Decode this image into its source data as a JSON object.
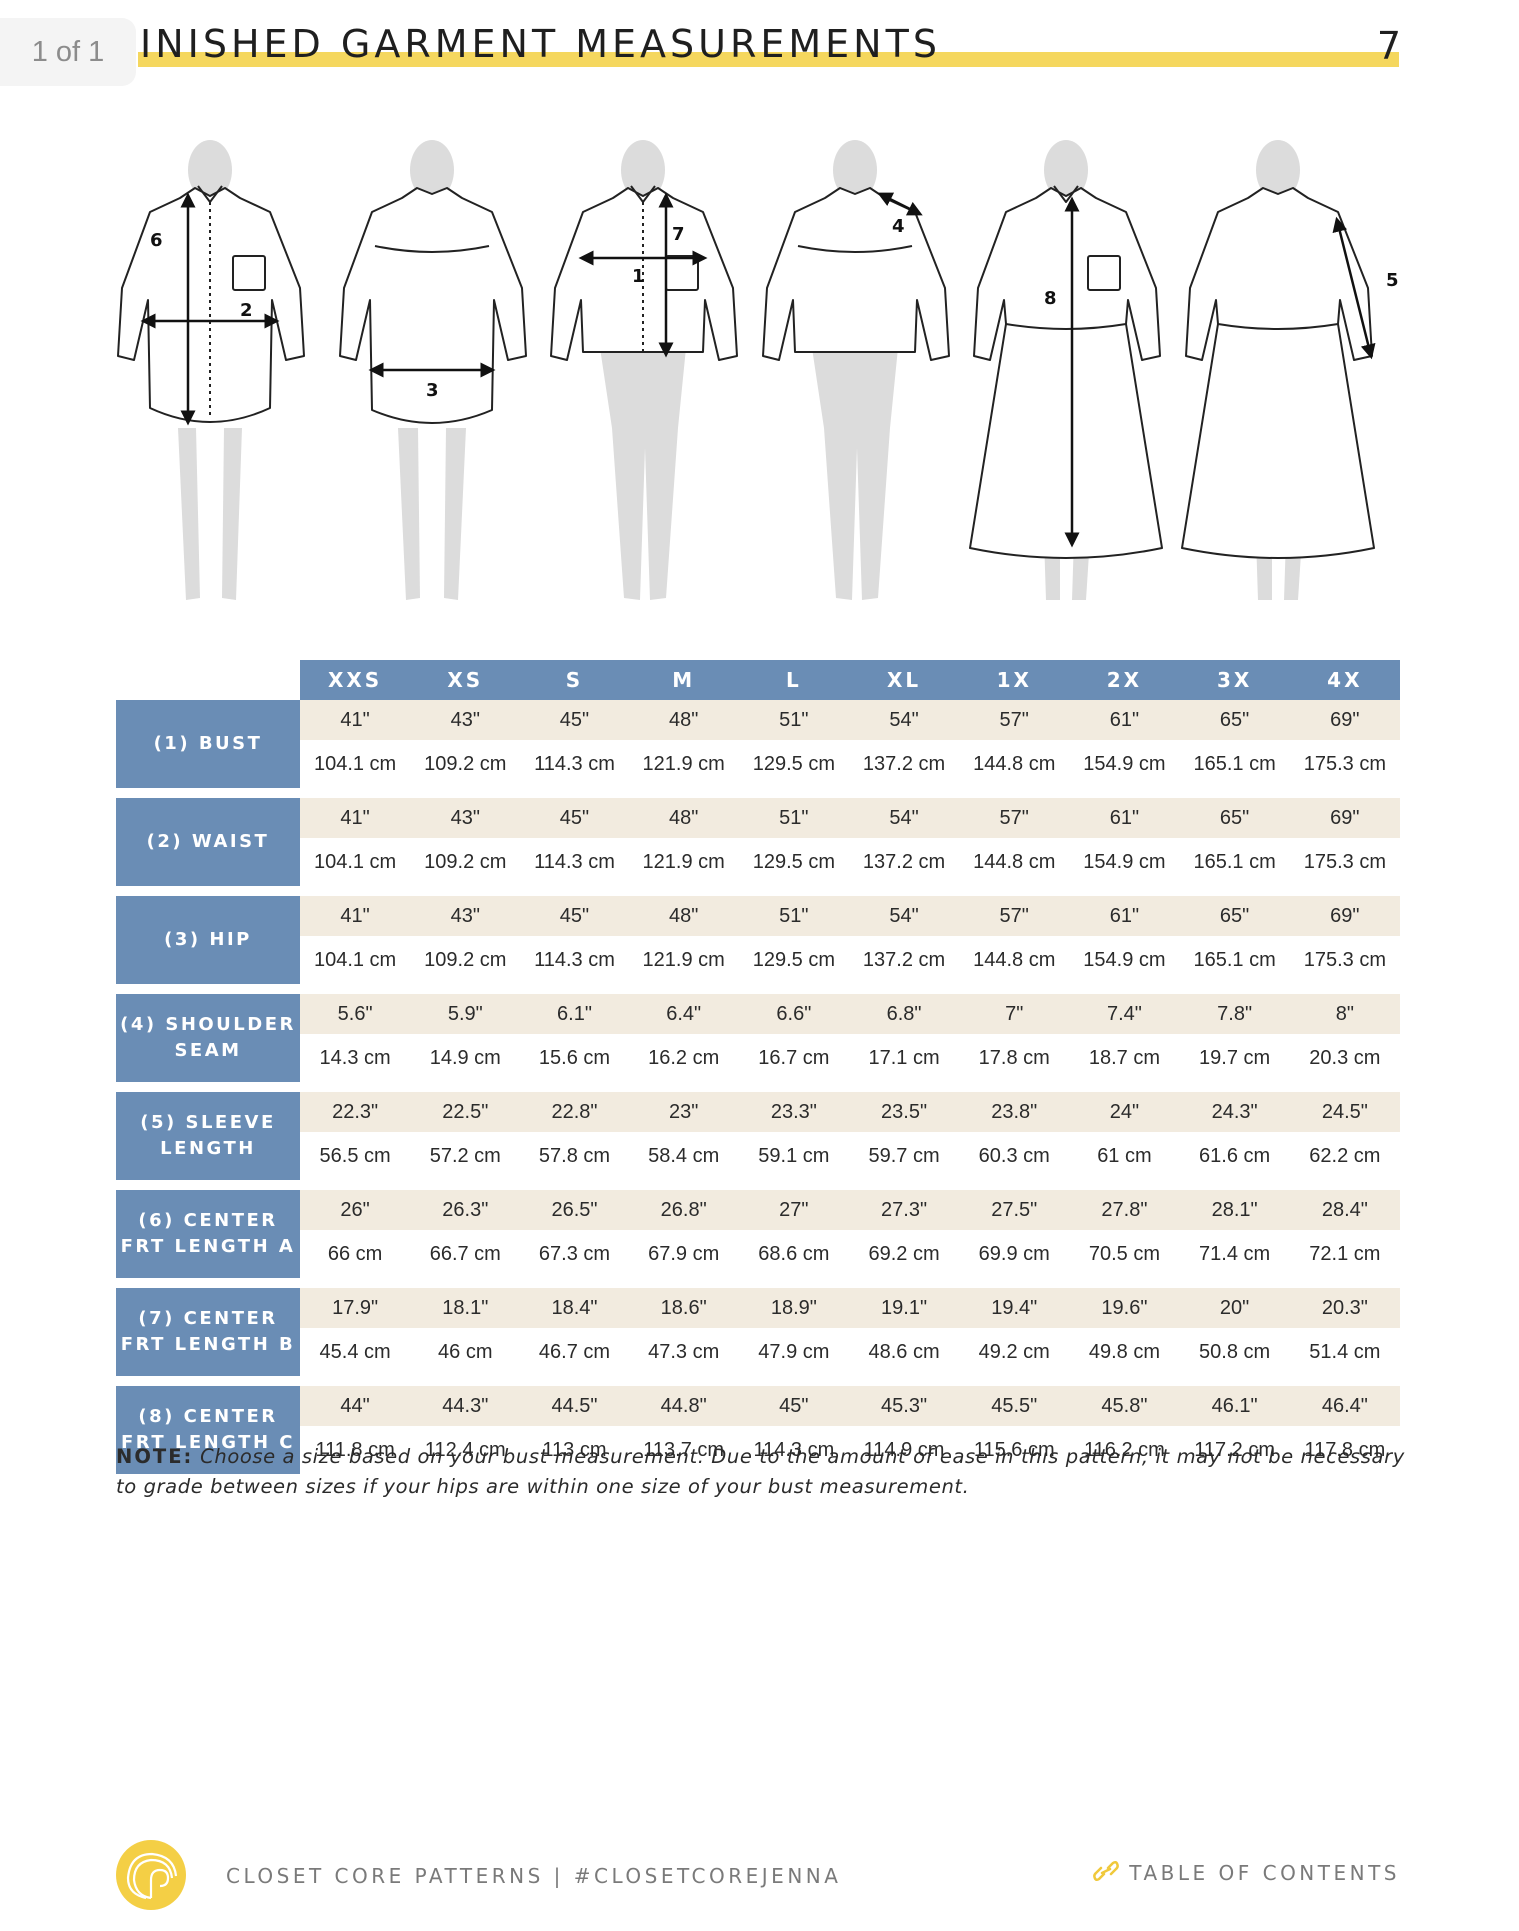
{
  "page_indicator": "1 of 1",
  "header": {
    "title": "INISHED GARMENT MEASUREMENTS",
    "page_number": "7"
  },
  "figure_labels": [
    "6",
    "2",
    "3",
    "7",
    "1",
    "4",
    "8",
    "5"
  ],
  "table": {
    "sizes": [
      "XXS",
      "XS",
      "S",
      "M",
      "L",
      "XL",
      "1X",
      "2X",
      "3X",
      "4X"
    ],
    "rows": [
      {
        "label_line1": "(1) BUST",
        "label_line2": "",
        "inches": [
          "41\"",
          "43\"",
          "45\"",
          "48\"",
          "51\"",
          "54\"",
          "57\"",
          "61\"",
          "65\"",
          "69\""
        ],
        "cm": [
          "104.1 cm",
          "109.2 cm",
          "114.3 cm",
          "121.9 cm",
          "129.5 cm",
          "137.2 cm",
          "144.8 cm",
          "154.9 cm",
          "165.1 cm",
          "175.3 cm"
        ]
      },
      {
        "label_line1": "(2) WAIST",
        "label_line2": "",
        "inches": [
          "41\"",
          "43\"",
          "45\"",
          "48\"",
          "51\"",
          "54\"",
          "57\"",
          "61\"",
          "65\"",
          "69\""
        ],
        "cm": [
          "104.1 cm",
          "109.2 cm",
          "114.3 cm",
          "121.9 cm",
          "129.5 cm",
          "137.2 cm",
          "144.8 cm",
          "154.9 cm",
          "165.1 cm",
          "175.3 cm"
        ]
      },
      {
        "label_line1": "(3) HIP",
        "label_line2": "",
        "inches": [
          "41\"",
          "43\"",
          "45\"",
          "48\"",
          "51\"",
          "54\"",
          "57\"",
          "61\"",
          "65\"",
          "69\""
        ],
        "cm": [
          "104.1 cm",
          "109.2 cm",
          "114.3 cm",
          "121.9 cm",
          "129.5 cm",
          "137.2 cm",
          "144.8 cm",
          "154.9 cm",
          "165.1 cm",
          "175.3 cm"
        ]
      },
      {
        "label_line1": "(4) SHOULDER",
        "label_line2": "SEAM",
        "inches": [
          "5.6\"",
          "5.9\"",
          "6.1\"",
          "6.4\"",
          "6.6\"",
          "6.8\"",
          "7\"",
          "7.4\"",
          "7.8\"",
          "8\""
        ],
        "cm": [
          "14.3 cm",
          "14.9 cm",
          "15.6 cm",
          "16.2 cm",
          "16.7 cm",
          "17.1 cm",
          "17.8 cm",
          "18.7 cm",
          "19.7 cm",
          "20.3 cm"
        ]
      },
      {
        "label_line1": "(5) SLEEVE",
        "label_line2": "LENGTH",
        "inches": [
          "22.3\"",
          "22.5\"",
          "22.8\"",
          "23\"",
          "23.3\"",
          "23.5\"",
          "23.8\"",
          "24\"",
          "24.3\"",
          "24.5\""
        ],
        "cm": [
          "56.5 cm",
          "57.2 cm",
          "57.8 cm",
          "58.4 cm",
          "59.1 cm",
          "59.7 cm",
          "60.3 cm",
          "61 cm",
          "61.6 cm",
          "62.2 cm"
        ]
      },
      {
        "label_line1": "(6) CENTER",
        "label_line2": "FRT LENGTH A",
        "inches": [
          "26\"",
          "26.3\"",
          "26.5\"",
          "26.8\"",
          "27\"",
          "27.3\"",
          "27.5\"",
          "27.8\"",
          "28.1\"",
          "28.4\""
        ],
        "cm": [
          "66 cm",
          "66.7 cm",
          "67.3 cm",
          "67.9 cm",
          "68.6 cm",
          "69.2 cm",
          "69.9 cm",
          "70.5 cm",
          "71.4 cm",
          "72.1 cm"
        ]
      },
      {
        "label_line1": "(7) CENTER",
        "label_line2": "FRT LENGTH B",
        "inches": [
          "17.9\"",
          "18.1\"",
          "18.4\"",
          "18.6\"",
          "18.9\"",
          "19.1\"",
          "19.4\"",
          "19.6\"",
          "20\"",
          "20.3\""
        ],
        "cm": [
          "45.4 cm",
          "46 cm",
          "46.7 cm",
          "47.3 cm",
          "47.9 cm",
          "48.6 cm",
          "49.2 cm",
          "49.8 cm",
          "50.8 cm",
          "51.4 cm"
        ]
      },
      {
        "label_line1": "(8) CENTER",
        "label_line2": "FRT LENGTH C",
        "inches": [
          "44\"",
          "44.3\"",
          "44.5\"",
          "44.8\"",
          "45\"",
          "45.3\"",
          "45.5\"",
          "45.8\"",
          "46.1\"",
          "46.4\""
        ],
        "cm": [
          "111.8 cm",
          "112.4 cm",
          "113 cm",
          "113.7 cm",
          "114.3 cm",
          "114.9 cm",
          "115.6 cm",
          "116.2 cm",
          "117.2 cm",
          "117.8 cm"
        ]
      }
    ]
  },
  "note": {
    "label": "NOTE:",
    "text": "Choose a size based on your bust measurement. Due to the amount of ease in this pattern, it may not be necessary to grade between sizes if your hips are within one size of your bust measurement."
  },
  "footer": {
    "brand": "CLOSET CORE PATTERNS | #CLOSETCOREJENNA",
    "toc_label": "TABLE OF CONTENTS",
    "toc_icon": "link-icon",
    "logo_icon": "closet-core-logo-icon"
  },
  "colors": {
    "header_band": "#f5d75e",
    "table_header": "#6a8db5",
    "inch_row": "#f2ebdf",
    "logo": "#f4cf45"
  }
}
